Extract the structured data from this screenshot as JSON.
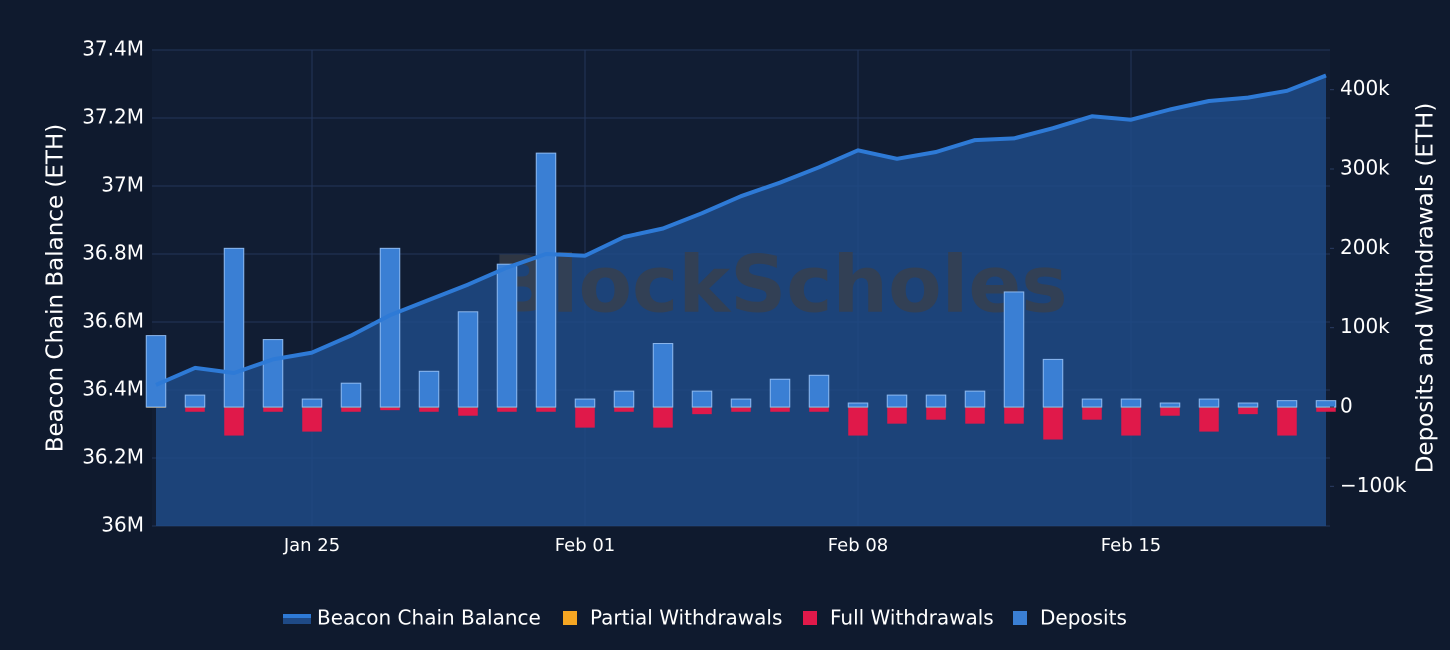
{
  "chart_data": {
    "type": "bar",
    "watermark": "BlockScholes",
    "y_label": "Beacon Chain Balance (ETH)",
    "y2_label": "Deposits and Withdrawals (ETH)",
    "categories": [
      null,
      null,
      null,
      null,
      "Jan 25",
      null,
      null,
      null,
      null,
      null,
      null,
      "Feb 01",
      null,
      null,
      null,
      null,
      null,
      null,
      "Feb 08",
      null,
      null,
      null,
      null,
      null,
      null,
      "Feb 15",
      null,
      null,
      null,
      null,
      null
    ],
    "ylim": [
      36000000,
      37400000
    ],
    "yticks": [
      {
        "value": 36000000,
        "label": "36M"
      },
      {
        "value": 36200000,
        "label": "36.2M"
      },
      {
        "value": 36400000,
        "label": "36.4M"
      },
      {
        "value": 36600000,
        "label": "36.6M"
      },
      {
        "value": 36800000,
        "label": "36.8M"
      },
      {
        "value": 37000000,
        "label": "37M"
      },
      {
        "value": 37200000,
        "label": "37.2M"
      },
      {
        "value": 37400000,
        "label": "37.4M"
      }
    ],
    "y2lim": [
      -150000,
      450000
    ],
    "y2ticks": [
      {
        "value": -100000,
        "label": "−100k"
      },
      0,
      {
        "value": 100000,
        "label": "100k"
      },
      {
        "value": 200000,
        "label": "200k"
      },
      {
        "value": 300000,
        "label": "300k"
      },
      {
        "value": 400000,
        "label": "400k"
      }
    ],
    "grid": true,
    "legend": "bottom",
    "series": [
      {
        "name": "Beacon Chain Balance",
        "type": "line",
        "axis": "y",
        "color": "#2e7ad6",
        "values": [
          36415000,
          36465000,
          36450000,
          36490000,
          36510000,
          36560000,
          36620000,
          36665000,
          36710000,
          36760000,
          36800000,
          36795000,
          36850000,
          36875000,
          36920000,
          36970000,
          37010000,
          37055000,
          37105000,
          37080000,
          37100000,
          37135000,
          37140000,
          37170000,
          37205000,
          37195000,
          37225000,
          37250000,
          37260000,
          37280000,
          37325000
        ]
      },
      {
        "name": "Partial Withdrawals",
        "type": "bar",
        "axis": "y2",
        "color": "#f5a623",
        "values": [
          -1000,
          -1000,
          -1000,
          -1000,
          -1000,
          -1000,
          -1000,
          -1000,
          -1000,
          -1000,
          -1000,
          -1000,
          -1000,
          -1000,
          -1000,
          -1000,
          -1000,
          -1000,
          -1000,
          -1000,
          -1000,
          -1000,
          -1000,
          -1000,
          -1000,
          -1000,
          -1000,
          -1000,
          -1000,
          -1000,
          -1000
        ]
      },
      {
        "name": "Full Withdrawals",
        "type": "bar",
        "axis": "y2",
        "color": "#e0194a",
        "values": [
          0,
          -5000,
          -35000,
          -5000,
          -30000,
          -5000,
          -3000,
          -5000,
          -10000,
          -5000,
          -5000,
          -25000,
          -5000,
          -25000,
          -8000,
          -5000,
          -5000,
          -5000,
          -35000,
          -20000,
          -15000,
          -20000,
          -20000,
          -40000,
          -15000,
          -35000,
          -10000,
          -30000,
          -8000,
          -35000,
          -5000
        ]
      },
      {
        "name": "Deposits",
        "type": "bar",
        "axis": "y2",
        "color": "#3a7fd4",
        "values": [
          90000,
          15000,
          200000,
          85000,
          10000,
          30000,
          200000,
          45000,
          120000,
          180000,
          320000,
          10000,
          20000,
          80000,
          20000,
          10000,
          35000,
          40000,
          5000,
          15000,
          15000,
          20000,
          145000,
          60000,
          10000,
          10000,
          5000,
          10000,
          5000,
          8000,
          8000
        ]
      }
    ]
  }
}
